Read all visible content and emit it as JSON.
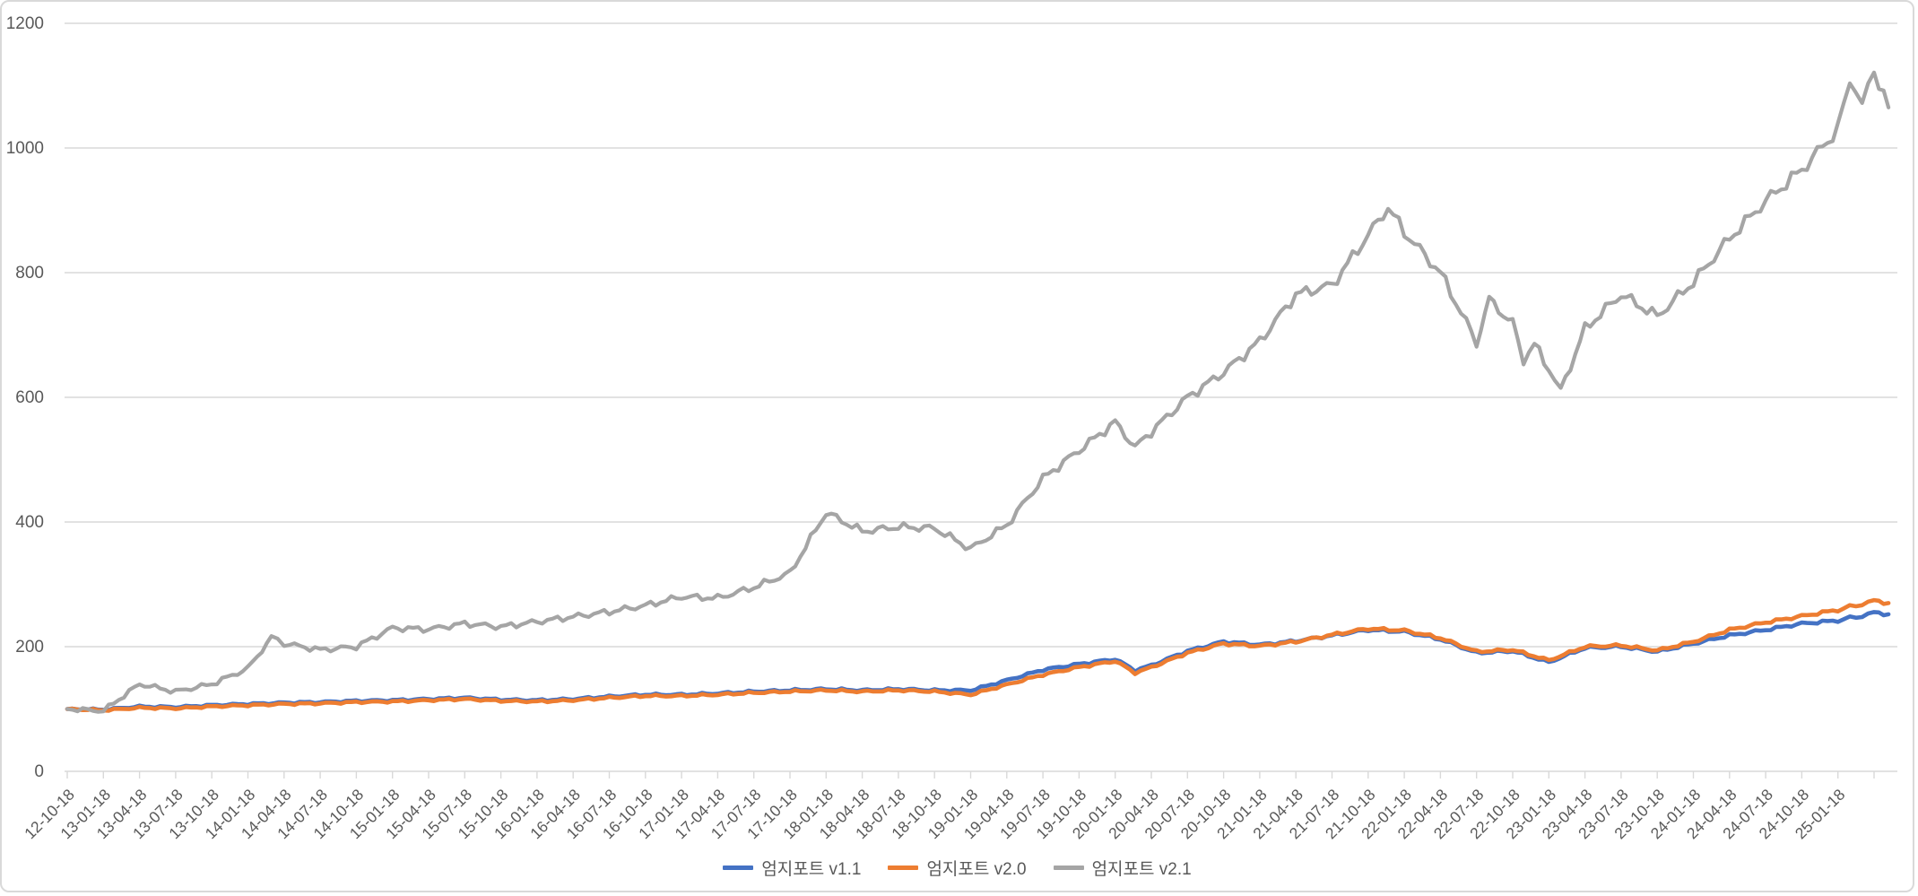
{
  "chart": {
    "background_color": "#FFFFFF",
    "frame_border_color": "#D9D9D9",
    "gridline_color": "#D9D9D9",
    "axis_line_color": "#D9D9D9",
    "axis_label_color": "#595959"
  },
  "chart_data": {
    "type": "line",
    "title": "",
    "xlabel": "",
    "ylabel": "",
    "ylim": [
      0,
      1200
    ],
    "y_ticks": [
      0,
      200,
      400,
      600,
      800,
      1000,
      1200
    ],
    "grid": true,
    "legend_position": "bottom-center",
    "x_unit": "quarter-index (0 = 12-10-18, labels every quarter)",
    "categories": [
      "12-10-18",
      "13-01-18",
      "13-04-18",
      "13-07-18",
      "13-10-18",
      "14-01-18",
      "14-04-18",
      "14-07-18",
      "14-10-18",
      "15-01-18",
      "15-04-18",
      "15-07-18",
      "15-10-18",
      "16-01-18",
      "16-04-18",
      "16-07-18",
      "16-10-18",
      "17-01-18",
      "17-04-18",
      "17-07-18",
      "17-10-18",
      "18-01-18",
      "18-04-18",
      "18-07-18",
      "18-10-18",
      "19-01-18",
      "19-04-18",
      "19-07-18",
      "19-10-18",
      "20-01-18",
      "20-04-18",
      "20-07-18",
      "20-10-18",
      "21-01-18",
      "21-04-18",
      "21-07-18",
      "21-10-18",
      "22-01-18",
      "22-04-18",
      "22-07-18",
      "22-10-18",
      "23-01-18",
      "23-04-18",
      "23-07-18",
      "23-10-18",
      "24-01-18",
      "24-04-18",
      "24-07-18",
      "24-10-18",
      "25-01-18"
    ],
    "series": [
      {
        "name": "엄지포트 v1.1",
        "color": "#4472C4",
        "x": [
          0,
          1,
          2,
          3,
          4,
          5,
          6,
          7,
          8,
          9,
          10,
          11,
          12,
          13,
          14,
          15,
          16,
          17,
          18,
          19,
          20,
          21,
          22,
          23,
          24,
          25,
          26,
          27,
          28,
          29,
          29.55,
          30,
          31,
          32,
          33,
          34,
          35,
          36,
          37,
          38,
          39,
          40,
          41,
          42,
          43,
          44,
          45,
          46,
          47,
          48,
          49,
          49.33,
          49.67,
          50,
          50.4
        ],
        "values": [
          100,
          99,
          104,
          103,
          106,
          108,
          110,
          111,
          113,
          114,
          116,
          118,
          115,
          114,
          116,
          120,
          123,
          123,
          125,
          128,
          130,
          132,
          130,
          132,
          130,
          130,
          146,
          163,
          172,
          180,
          162,
          170,
          193,
          208,
          203,
          209,
          218,
          227,
          224,
          212,
          190,
          193,
          175,
          198,
          200,
          192,
          205,
          218,
          227,
          237,
          242,
          246,
          249,
          255,
          252
        ]
      },
      {
        "name": "엄지포트 v2.0",
        "color": "#ED7D31",
        "x": [
          0,
          1,
          2,
          3,
          4,
          5,
          6,
          7,
          8,
          9,
          10,
          11,
          12,
          13,
          14,
          15,
          16,
          17,
          18,
          19,
          20,
          21,
          22,
          23,
          24,
          25,
          26,
          27,
          28,
          29,
          29.55,
          30,
          31,
          32,
          33,
          34,
          35,
          36,
          37,
          38,
          39,
          40,
          41,
          42,
          43,
          44,
          45,
          46,
          47,
          48,
          49,
          49.33,
          49.67,
          50,
          50.4
        ],
        "values": [
          100,
          98,
          102,
          101,
          104,
          106,
          108,
          109,
          111,
          112,
          114,
          116,
          113,
          112,
          114,
          118,
          121,
          121,
          123,
          126,
          128,
          130,
          128,
          130,
          128,
          123,
          139,
          155,
          167,
          177,
          158,
          167,
          190,
          205,
          201,
          208,
          219,
          229,
          226,
          214,
          192,
          195,
          178,
          200,
          202,
          194,
          208,
          227,
          239,
          249,
          259,
          264,
          268,
          274,
          270
        ]
      },
      {
        "name": "엄지포트 v2.1",
        "color": "#A5A5A5",
        "x": [
          0,
          1,
          2,
          3,
          4,
          5,
          5.65,
          6,
          7,
          8,
          9,
          10,
          11,
          12,
          13,
          14,
          15,
          16,
          17,
          18,
          19,
          20,
          21,
          22,
          23,
          24,
          25,
          26,
          27,
          28,
          29,
          29.55,
          30,
          31,
          32,
          33,
          34,
          35,
          36,
          36.55,
          37,
          38,
          39,
          39.35,
          40,
          40.3,
          40.6,
          41,
          41.33,
          42,
          43,
          44,
          45,
          46,
          47,
          48,
          49,
          49.33,
          49.67,
          50,
          50.4
        ],
        "values": [
          100,
          97,
          140,
          128,
          140,
          165,
          215,
          205,
          195,
          200,
          230,
          228,
          237,
          232,
          240,
          248,
          256,
          266,
          280,
          278,
          295,
          318,
          415,
          385,
          392,
          390,
          357,
          395,
          470,
          515,
          560,
          520,
          545,
          600,
          640,
          690,
          765,
          780,
          860,
          905,
          865,
          800,
          688,
          757,
          718,
          660,
          685,
          645,
          611,
          710,
          765,
          730,
          785,
          855,
          915,
          965,
          1030,
          1110,
          1070,
          1125,
          1065
        ]
      }
    ]
  },
  "legend": {
    "items": [
      {
        "label": "엄지포트 v1.1",
        "color": "#4472C4"
      },
      {
        "label": "엄지포트 v2.0",
        "color": "#ED7D31"
      },
      {
        "label": "엄지포트 v2.1",
        "color": "#A5A5A5"
      }
    ]
  }
}
